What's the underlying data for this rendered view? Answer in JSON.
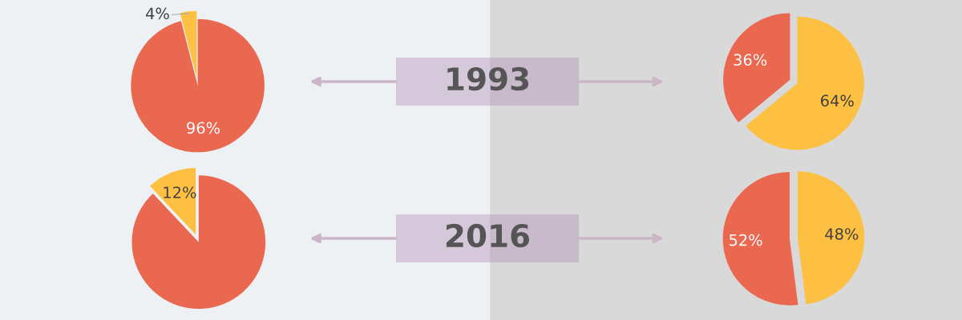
{
  "chart_data": [
    {
      "type": "pie",
      "categories": [
        null,
        null
      ],
      "values": [
        96,
        4
      ],
      "colors": [
        "#ea6850",
        "#fec042"
      ],
      "value_labels": [
        "96%",
        "4%"
      ],
      "annotations": [
        "1993"
      ]
    },
    {
      "type": "pie",
      "categories": [
        null,
        null
      ],
      "values": [
        64,
        36
      ],
      "colors": [
        "#fec042",
        "#ea6850"
      ],
      "value_labels": [
        "64%",
        "36%"
      ]
    },
    {
      "type": "pie",
      "categories": [
        null,
        null
      ],
      "values": [
        88,
        12
      ],
      "colors": [
        "#ea6850",
        "#fec042"
      ],
      "value_labels": [
        null,
        "12%"
      ],
      "annotations": [
        "2016"
      ]
    },
    {
      "type": "pie",
      "categories": [
        null,
        null
      ],
      "values": [
        48,
        52
      ],
      "colors": [
        "#fec042",
        "#ea6850"
      ],
      "value_labels": [
        "48%",
        "52%"
      ]
    }
  ]
}
